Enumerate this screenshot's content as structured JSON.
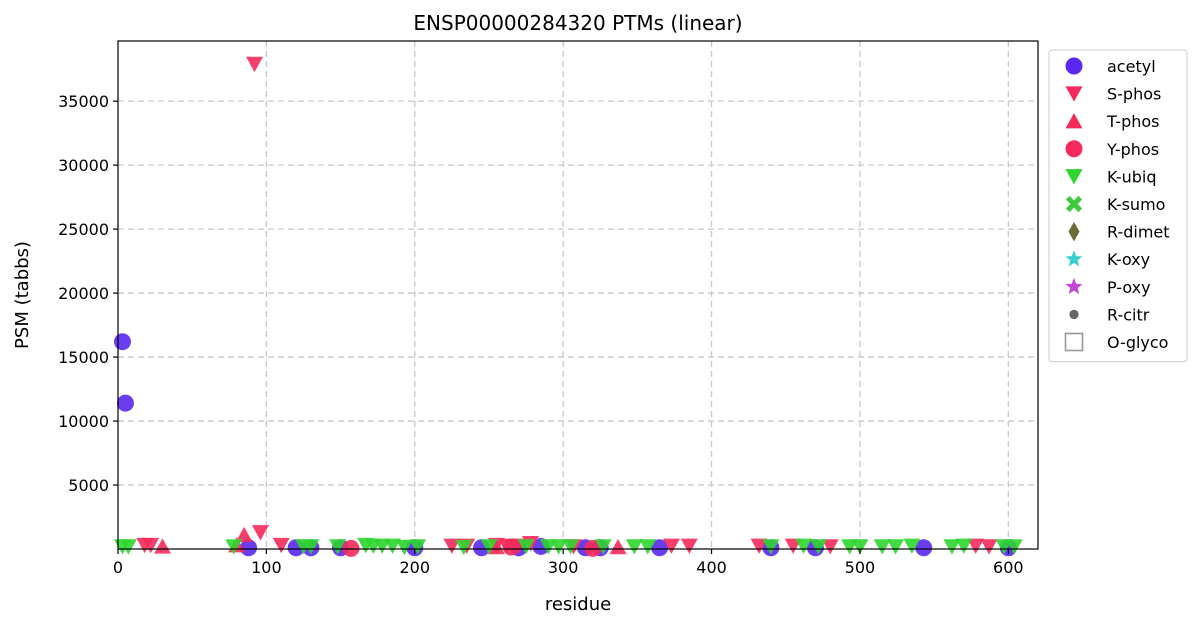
{
  "chart_data": {
    "type": "scatter",
    "title": "ENSP00000284320 PTMs (linear)",
    "xlabel": "residue",
    "ylabel": "PSM (tabbs)",
    "xlim": [
      0,
      620
    ],
    "ylim": [
      0,
      39700
    ],
    "xticks": [
      0,
      100,
      200,
      300,
      400,
      500,
      600
    ],
    "yticks": [
      5000,
      10000,
      15000,
      20000,
      25000,
      30000,
      35000
    ],
    "grid": true,
    "legend_position": "outside-right",
    "series": [
      {
        "name": "acetyl",
        "marker": "circle",
        "color": "#5a28f0",
        "points": [
          [
            3,
            16200
          ],
          [
            5,
            11400
          ],
          [
            88,
            100
          ],
          [
            120,
            100
          ],
          [
            130,
            100
          ],
          [
            150,
            100
          ],
          [
            200,
            100
          ],
          [
            245,
            100
          ],
          [
            270,
            100
          ],
          [
            285,
            200
          ],
          [
            315,
            100
          ],
          [
            325,
            100
          ],
          [
            365,
            100
          ],
          [
            440,
            100
          ],
          [
            470,
            100
          ],
          [
            543,
            100
          ],
          [
            600,
            100
          ]
        ]
      },
      {
        "name": "S-phos",
        "marker": "triangle-down",
        "color": "#f52a5a",
        "points": [
          [
            92,
            37900
          ],
          [
            96,
            1300
          ],
          [
            18,
            300
          ],
          [
            22,
            300
          ],
          [
            110,
            300
          ],
          [
            225,
            250
          ],
          [
            235,
            250
          ],
          [
            255,
            300
          ],
          [
            262,
            250
          ],
          [
            270,
            250
          ],
          [
            278,
            450
          ],
          [
            307,
            200
          ],
          [
            373,
            250
          ],
          [
            385,
            250
          ],
          [
            432,
            250
          ],
          [
            455,
            250
          ],
          [
            480,
            200
          ],
          [
            578,
            250
          ],
          [
            587,
            200
          ]
        ]
      },
      {
        "name": "T-phos",
        "marker": "triangle-up",
        "color": "#f52a5a",
        "points": [
          [
            85,
            1100
          ],
          [
            30,
            200
          ],
          [
            80,
            300
          ],
          [
            255,
            150
          ],
          [
            337,
            150
          ]
        ]
      },
      {
        "name": "Y-phos",
        "marker": "circle",
        "color": "#f52a5a",
        "points": [
          [
            157,
            50
          ],
          [
            265,
            150
          ],
          [
            320,
            50
          ]
        ]
      },
      {
        "name": "K-ubiq",
        "marker": "triangle-down",
        "color": "#2ed62e",
        "points": [
          [
            3,
            200
          ],
          [
            7,
            200
          ],
          [
            78,
            200
          ],
          [
            125,
            200
          ],
          [
            130,
            200
          ],
          [
            148,
            200
          ],
          [
            167,
            300
          ],
          [
            172,
            250
          ],
          [
            178,
            250
          ],
          [
            185,
            250
          ],
          [
            193,
            150
          ],
          [
            202,
            200
          ],
          [
            233,
            150
          ],
          [
            250,
            200
          ],
          [
            275,
            200
          ],
          [
            290,
            200
          ],
          [
            297,
            200
          ],
          [
            305,
            200
          ],
          [
            327,
            200
          ],
          [
            348,
            200
          ],
          [
            357,
            200
          ],
          [
            440,
            200
          ],
          [
            462,
            250
          ],
          [
            472,
            200
          ],
          [
            493,
            200
          ],
          [
            500,
            200
          ],
          [
            515,
            200
          ],
          [
            524,
            200
          ],
          [
            535,
            250
          ],
          [
            562,
            200
          ],
          [
            570,
            250
          ],
          [
            597,
            200
          ],
          [
            604,
            200
          ]
        ]
      },
      {
        "name": "K-sumo",
        "marker": "x-filled",
        "color": "#3ec93e",
        "points": []
      },
      {
        "name": "R-dimet",
        "marker": "diamond",
        "color": "#6b6b3a",
        "points": []
      },
      {
        "name": "K-oxy",
        "marker": "star",
        "color": "#3ccfcf",
        "points": []
      },
      {
        "name": "P-oxy",
        "marker": "star",
        "color": "#c445d6",
        "points": []
      },
      {
        "name": "R-citr",
        "marker": "dot",
        "color": "#666666",
        "points": []
      },
      {
        "name": "O-glyco",
        "marker": "square-open",
        "color": "#999999",
        "points": []
      }
    ]
  }
}
